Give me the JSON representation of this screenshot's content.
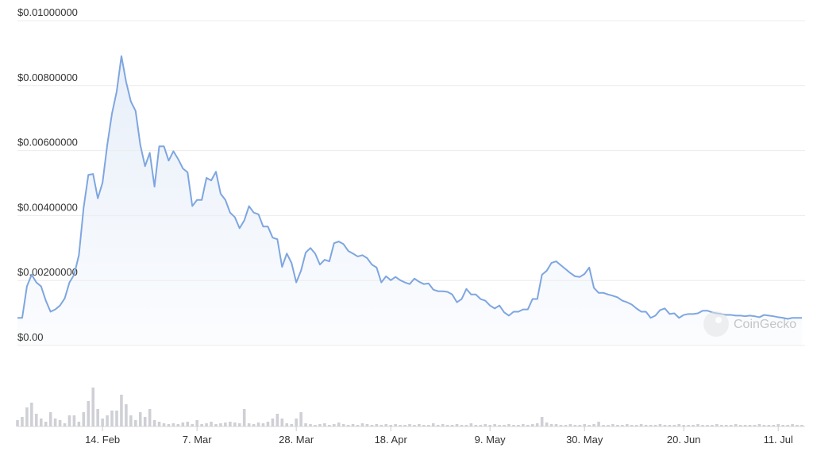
{
  "chart_data": {
    "type": "line",
    "watermark": "CoinGecko",
    "categories": [
      null,
      null,
      null,
      null,
      null,
      null,
      null,
      null,
      null,
      null,
      null,
      null,
      null,
      null,
      null,
      null,
      null,
      null,
      "14. Feb",
      null,
      null,
      null,
      null,
      null,
      null,
      null,
      null,
      null,
      null,
      null,
      null,
      null,
      null,
      null,
      null,
      null,
      null,
      null,
      "7. Mar",
      null,
      null,
      null,
      null,
      null,
      null,
      null,
      null,
      null,
      null,
      null,
      null,
      null,
      null,
      null,
      null,
      null,
      null,
      null,
      null,
      "28. Mar",
      null,
      null,
      null,
      null,
      null,
      null,
      null,
      null,
      null,
      null,
      null,
      null,
      null,
      null,
      null,
      null,
      null,
      null,
      null,
      "18. Apr",
      null,
      null,
      null,
      null,
      null,
      null,
      null,
      null,
      null,
      null,
      null,
      null,
      null,
      null,
      null,
      null,
      null,
      null,
      null,
      null,
      "9. May",
      null,
      null,
      null,
      null,
      null,
      null,
      null,
      null,
      null,
      null,
      null,
      null,
      null,
      null,
      null,
      null,
      null,
      null,
      null,
      "30. May",
      null,
      null,
      null,
      null,
      null,
      null,
      null,
      null,
      null,
      null,
      null,
      null,
      null,
      null,
      null,
      null,
      null,
      null,
      null,
      null,
      "20. Jun",
      null,
      null,
      null,
      null,
      null,
      null,
      null,
      null,
      null,
      null,
      null,
      null,
      null,
      null,
      null,
      null,
      null,
      null,
      null,
      "11. Jul",
      null,
      null,
      null,
      null,
      null
    ],
    "series": [
      {
        "type": "line",
        "color": "#7ea6e0",
        "values": [
          0.00085,
          0.00085,
          0.00182,
          0.00218,
          0.00194,
          0.00182,
          0.00138,
          0.00104,
          0.00111,
          0.00123,
          0.00145,
          0.00194,
          0.00218,
          0.00278,
          0.00424,
          0.00525,
          0.00528,
          0.00453,
          0.00501,
          0.00617,
          0.00714,
          0.00782,
          0.00891,
          0.00811,
          0.00751,
          0.00722,
          0.00617,
          0.00552,
          0.00593,
          0.00489,
          0.00613,
          0.00613,
          0.00569,
          0.00598,
          0.00574,
          0.00545,
          0.00533,
          0.00429,
          0.00448,
          0.00448,
          0.00516,
          0.00508,
          0.00535,
          0.00467,
          0.00448,
          0.00409,
          0.00395,
          0.00361,
          0.00385,
          0.00429,
          0.00409,
          0.00404,
          0.00366,
          0.00366,
          0.00332,
          0.00327,
          0.00242,
          0.00283,
          0.00254,
          0.00194,
          0.0023,
          0.00286,
          0.003,
          0.00283,
          0.00249,
          0.00264,
          0.00259,
          0.00315,
          0.0032,
          0.00312,
          0.00291,
          0.00283,
          0.00274,
          0.00278,
          0.00269,
          0.00249,
          0.0024,
          0.00194,
          0.00213,
          0.00201,
          0.00211,
          0.00201,
          0.00194,
          0.00189,
          0.00206,
          0.00196,
          0.00189,
          0.00191,
          0.00172,
          0.00167,
          0.00167,
          0.00165,
          0.00157,
          0.00133,
          0.00143,
          0.00174,
          0.00157,
          0.00157,
          0.00143,
          0.00138,
          0.00123,
          0.00114,
          0.00123,
          0.00102,
          0.00092,
          0.00104,
          0.00104,
          0.00111,
          0.00111,
          0.00143,
          0.00143,
          0.00218,
          0.0023,
          0.00254,
          0.00259,
          0.00247,
          0.00235,
          0.00223,
          0.00213,
          0.00211,
          0.0022,
          0.0024,
          0.00177,
          0.00162,
          0.00162,
          0.00157,
          0.00153,
          0.00148,
          0.00138,
          0.00133,
          0.00126,
          0.00114,
          0.00104,
          0.00104,
          0.00085,
          0.00092,
          0.00109,
          0.00114,
          0.00097,
          0.00099,
          0.00085,
          0.00094,
          0.00097,
          0.00097,
          0.00099,
          0.00107,
          0.00107,
          0.00102,
          0.00099,
          0.00097,
          0.00094,
          0.00094,
          0.00092,
          0.00092,
          0.0009,
          0.00092,
          0.0009,
          0.00087,
          0.00094,
          0.00092,
          0.0009,
          0.00087,
          0.00085,
          0.00082,
          0.00085,
          0.00085,
          0.00085
        ]
      },
      {
        "type": "bar",
        "axis": "y2",
        "color": "#cfd0d6",
        "values": [
          8,
          12,
          24,
          30,
          16,
          10,
          6,
          18,
          10,
          8,
          4,
          14,
          14,
          6,
          18,
          32,
          49,
          22,
          10,
          14,
          20,
          20,
          40,
          28,
          14,
          8,
          18,
          12,
          22,
          8,
          6,
          4,
          3,
          4,
          3,
          5,
          6,
          3,
          8,
          3,
          4,
          6,
          3,
          4,
          5,
          6,
          5,
          4,
          22,
          4,
          3,
          5,
          4,
          6,
          10,
          16,
          10,
          4,
          3,
          10,
          18,
          4,
          3,
          2,
          3,
          4,
          2,
          3,
          5,
          3,
          2,
          3,
          2,
          4,
          3,
          2,
          3,
          2,
          3,
          2,
          3,
          2,
          2,
          3,
          2,
          3,
          2,
          2,
          4,
          2,
          3,
          2,
          2,
          3,
          2,
          2,
          4,
          2,
          2,
          3,
          2,
          3,
          2,
          2,
          3,
          2,
          2,
          3,
          2,
          3,
          4,
          12,
          5,
          3,
          3,
          2,
          2,
          3,
          2,
          2,
          3,
          2,
          3,
          6,
          2,
          2,
          3,
          2,
          2,
          3,
          2,
          2,
          3,
          2,
          2,
          2,
          3,
          2,
          2,
          2,
          3,
          2,
          2,
          2,
          3,
          2,
          2,
          2,
          3,
          2,
          2,
          2,
          3,
          2,
          2,
          2,
          2,
          3,
          2,
          2,
          2,
          3,
          2,
          2,
          3,
          2,
          2
        ]
      }
    ],
    "ylim": [
      0,
      0.01
    ],
    "yticks": [
      {
        "value": 0,
        "label": "$0.00"
      },
      {
        "value": 0.002,
        "label": "$0.00200000"
      },
      {
        "value": 0.004,
        "label": "$0.00400000"
      },
      {
        "value": 0.006,
        "label": "$0.00600000"
      },
      {
        "value": 0.008,
        "label": "$0.00800000"
      },
      {
        "value": 0.01,
        "label": "$0.01000000"
      }
    ],
    "y2lim": [
      0,
      100
    ],
    "grid": true
  }
}
